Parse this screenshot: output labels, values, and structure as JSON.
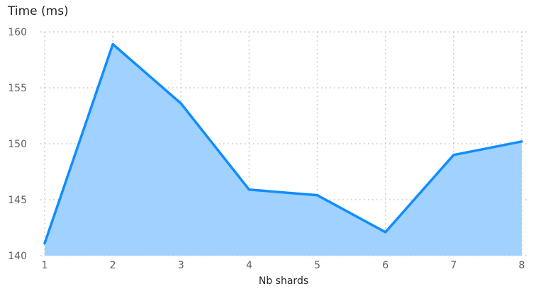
{
  "chart_data": {
    "type": "area",
    "title": "",
    "xlabel": "Nb shards",
    "ylabel": "Time (ms)",
    "x": [
      1,
      2,
      3,
      4,
      5,
      6,
      7,
      8
    ],
    "values": [
      141.1,
      158.9,
      153.6,
      145.9,
      145.4,
      142.1,
      149.0,
      150.2
    ],
    "ylim": [
      140,
      160
    ],
    "yticks": [
      140,
      145,
      150,
      155,
      160
    ],
    "grid": true,
    "legend": "none",
    "colors": {
      "line": "#118DFF",
      "fill": "#A0D1FF",
      "grid": "#C8C6C4",
      "tick_text": "#605E5C",
      "label_text": "#252423"
    }
  }
}
